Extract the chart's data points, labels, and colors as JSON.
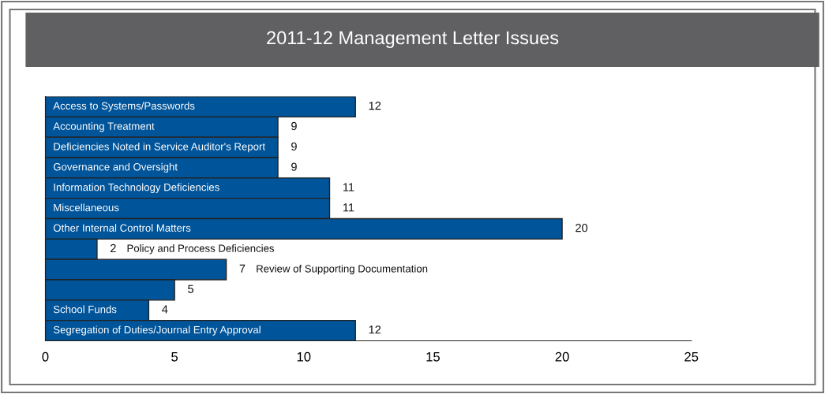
{
  "chart_data": {
    "type": "bar",
    "orientation": "horizontal",
    "title": "2011-12 Management Letter Issues",
    "categories": [
      "Access to Systems/Passwords",
      "Accounting Treatment",
      "Deficiencies Noted in Service Auditor's Report",
      "Governance and Oversight",
      "Information Technology Deficiencies",
      "Miscellaneous",
      "Other Internal Control Matters",
      "Policy and Process Deficiencies",
      "Review of Supporting Documentation",
      null,
      "School Funds",
      "Segregation of Duties/Journal Entry Approval"
    ],
    "values": [
      12,
      9,
      9,
      9,
      11,
      11,
      20,
      2,
      7,
      5,
      4,
      12
    ],
    "color": "#00549a",
    "data_labels": true,
    "grid": false,
    "legend": false,
    "xlim": [
      0,
      25
    ],
    "xticks": [
      0,
      5,
      10,
      15,
      20,
      25
    ]
  }
}
